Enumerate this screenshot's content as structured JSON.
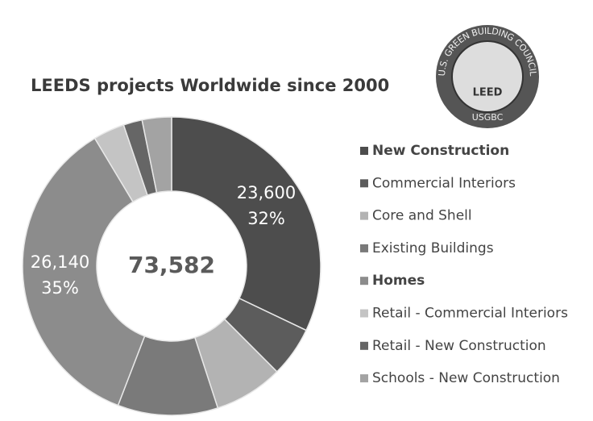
{
  "chart_data": {
    "type": "donut",
    "title": "LEEDS projects Worldwide since 2000",
    "center_label": "73,582",
    "categories": [
      "New Construction",
      "Commercial Interiors",
      "Core and Shell",
      "Existing Buildings",
      "Homes",
      "Retail - Commercial Interiors",
      "Retail - New Construction",
      "Schools - New Construction"
    ],
    "values": [
      23600,
      4000,
      5500,
      8000,
      26140,
      2500,
      1500,
      2342
    ],
    "value_labels": [
      "23,600",
      null,
      null,
      null,
      "26,140",
      null,
      null,
      null
    ],
    "percent_labels": [
      "32%",
      null,
      null,
      null,
      "35%",
      null,
      null,
      null
    ],
    "colors": [
      "#4d4d4d",
      "#5c5c5c",
      "#b3b3b3",
      "#7a7a7a",
      "#8c8c8c",
      "#c4c4c4",
      "#666666",
      "#a3a3a3"
    ],
    "bold": [
      true,
      false,
      false,
      false,
      true,
      false,
      false,
      false
    ],
    "logo": {
      "ring_text": "U.S. GREEN BUILDING COUNCIL",
      "center": "LEED",
      "bottom": "USGBC"
    }
  }
}
